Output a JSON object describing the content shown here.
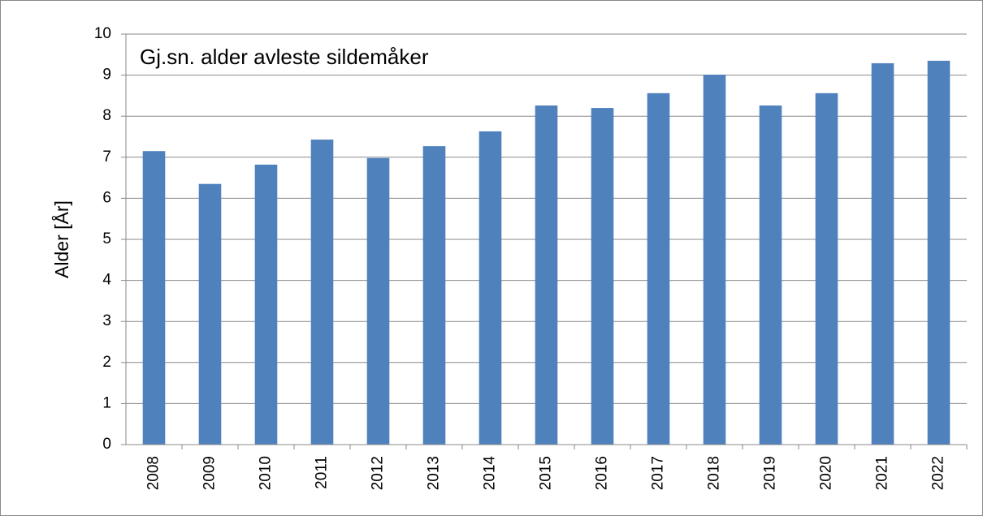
{
  "chart_data": {
    "type": "bar",
    "title": "Gj.sn. alder avleste sildemåker",
    "y_label": "Alder [År]",
    "categories": [
      "2008",
      "2009",
      "2010",
      "2011",
      "2012",
      "2013",
      "2014",
      "2015",
      "2016",
      "2017",
      "2018",
      "2019",
      "2020",
      "2021",
      "2022"
    ],
    "values": [
      7.15,
      6.35,
      6.82,
      7.43,
      6.98,
      7.27,
      7.63,
      8.26,
      8.2,
      8.56,
      9.01,
      8.26,
      8.56,
      9.29,
      9.35
    ],
    "color": "#4f81bd",
    "ylim": [
      0,
      10
    ],
    "yticks": [
      0,
      1,
      2,
      3,
      4,
      5,
      6,
      7,
      8,
      9,
      10
    ],
    "grid": true
  }
}
